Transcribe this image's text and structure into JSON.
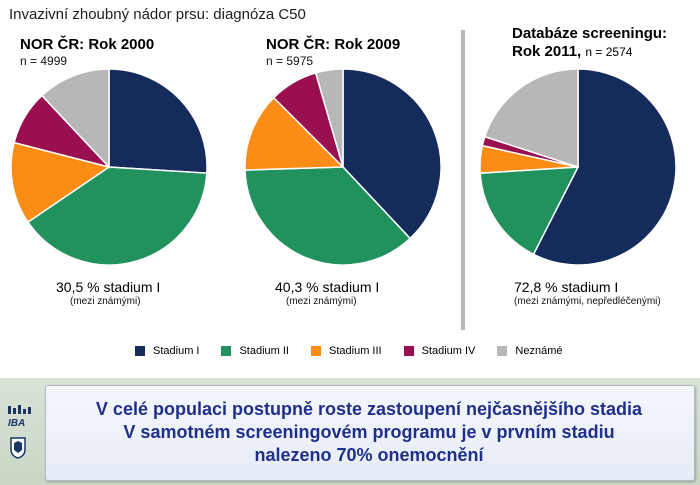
{
  "title": "Invazivní zhoubný nádor prsu: diagnóza C50",
  "colors": {
    "stadium_1": "#142b5c",
    "stadium_2": "#21915e",
    "stadium_3": "#fb8c16",
    "stadium_4": "#990f4f",
    "nezname": "#b7b7b7",
    "footer_text": "#1f2f8a"
  },
  "charts": [
    {
      "heading_line1": "NOR ČR: Rok 2000",
      "heading_line2": "",
      "n_label": "n = 4999",
      "pct_label": "30,5 % stadium I",
      "note": "(mezi známými)"
    },
    {
      "heading_line1": "NOR ČR: Rok 2009",
      "heading_line2": "",
      "n_label": "n = 5975",
      "pct_label": "40,3 % stadium I",
      "note": "(mezi známými)"
    },
    {
      "heading_line1": "Databáze screeningu:",
      "heading_line2": "Rok 2011,",
      "n_label": "n = 2574",
      "pct_label": "72,8 % stadium I",
      "note": "(mezi známými, nepředléčenými)"
    }
  ],
  "legend": [
    "Stadium I",
    "Stadium II",
    "Stadium III",
    "Stadium IV",
    "Neznámé"
  ],
  "chart_data": [
    {
      "type": "pie",
      "title": "NOR ČR: Rok 2000",
      "categories": [
        "Stadium I",
        "Stadium II",
        "Stadium III",
        "Stadium IV",
        "Neznámé"
      ],
      "values": [
        26.0,
        39.5,
        13.5,
        9.0,
        12.0
      ]
    },
    {
      "type": "pie",
      "title": "NOR ČR: Rok 2009",
      "categories": [
        "Stadium I",
        "Stadium II",
        "Stadium III",
        "Stadium IV",
        "Neznámé"
      ],
      "values": [
        38.0,
        36.5,
        13.0,
        8.0,
        4.5
      ]
    },
    {
      "type": "pie",
      "title": "Databáze screeningu: Rok 2011",
      "categories": [
        "Stadium I",
        "Stadium II",
        "Stadium III",
        "Stadium IV",
        "Neznámé"
      ],
      "values": [
        57.5,
        16.5,
        4.5,
        1.5,
        20.0
      ]
    }
  ],
  "footer": {
    "line1": "V celé populaci postupně roste zastoupení nejčasnějšího stadia",
    "line2": "V samotném screeningovém programu je v prvním stadiu",
    "line3": "nalezeno 70% onemocnění"
  },
  "logo_text": "IBA"
}
